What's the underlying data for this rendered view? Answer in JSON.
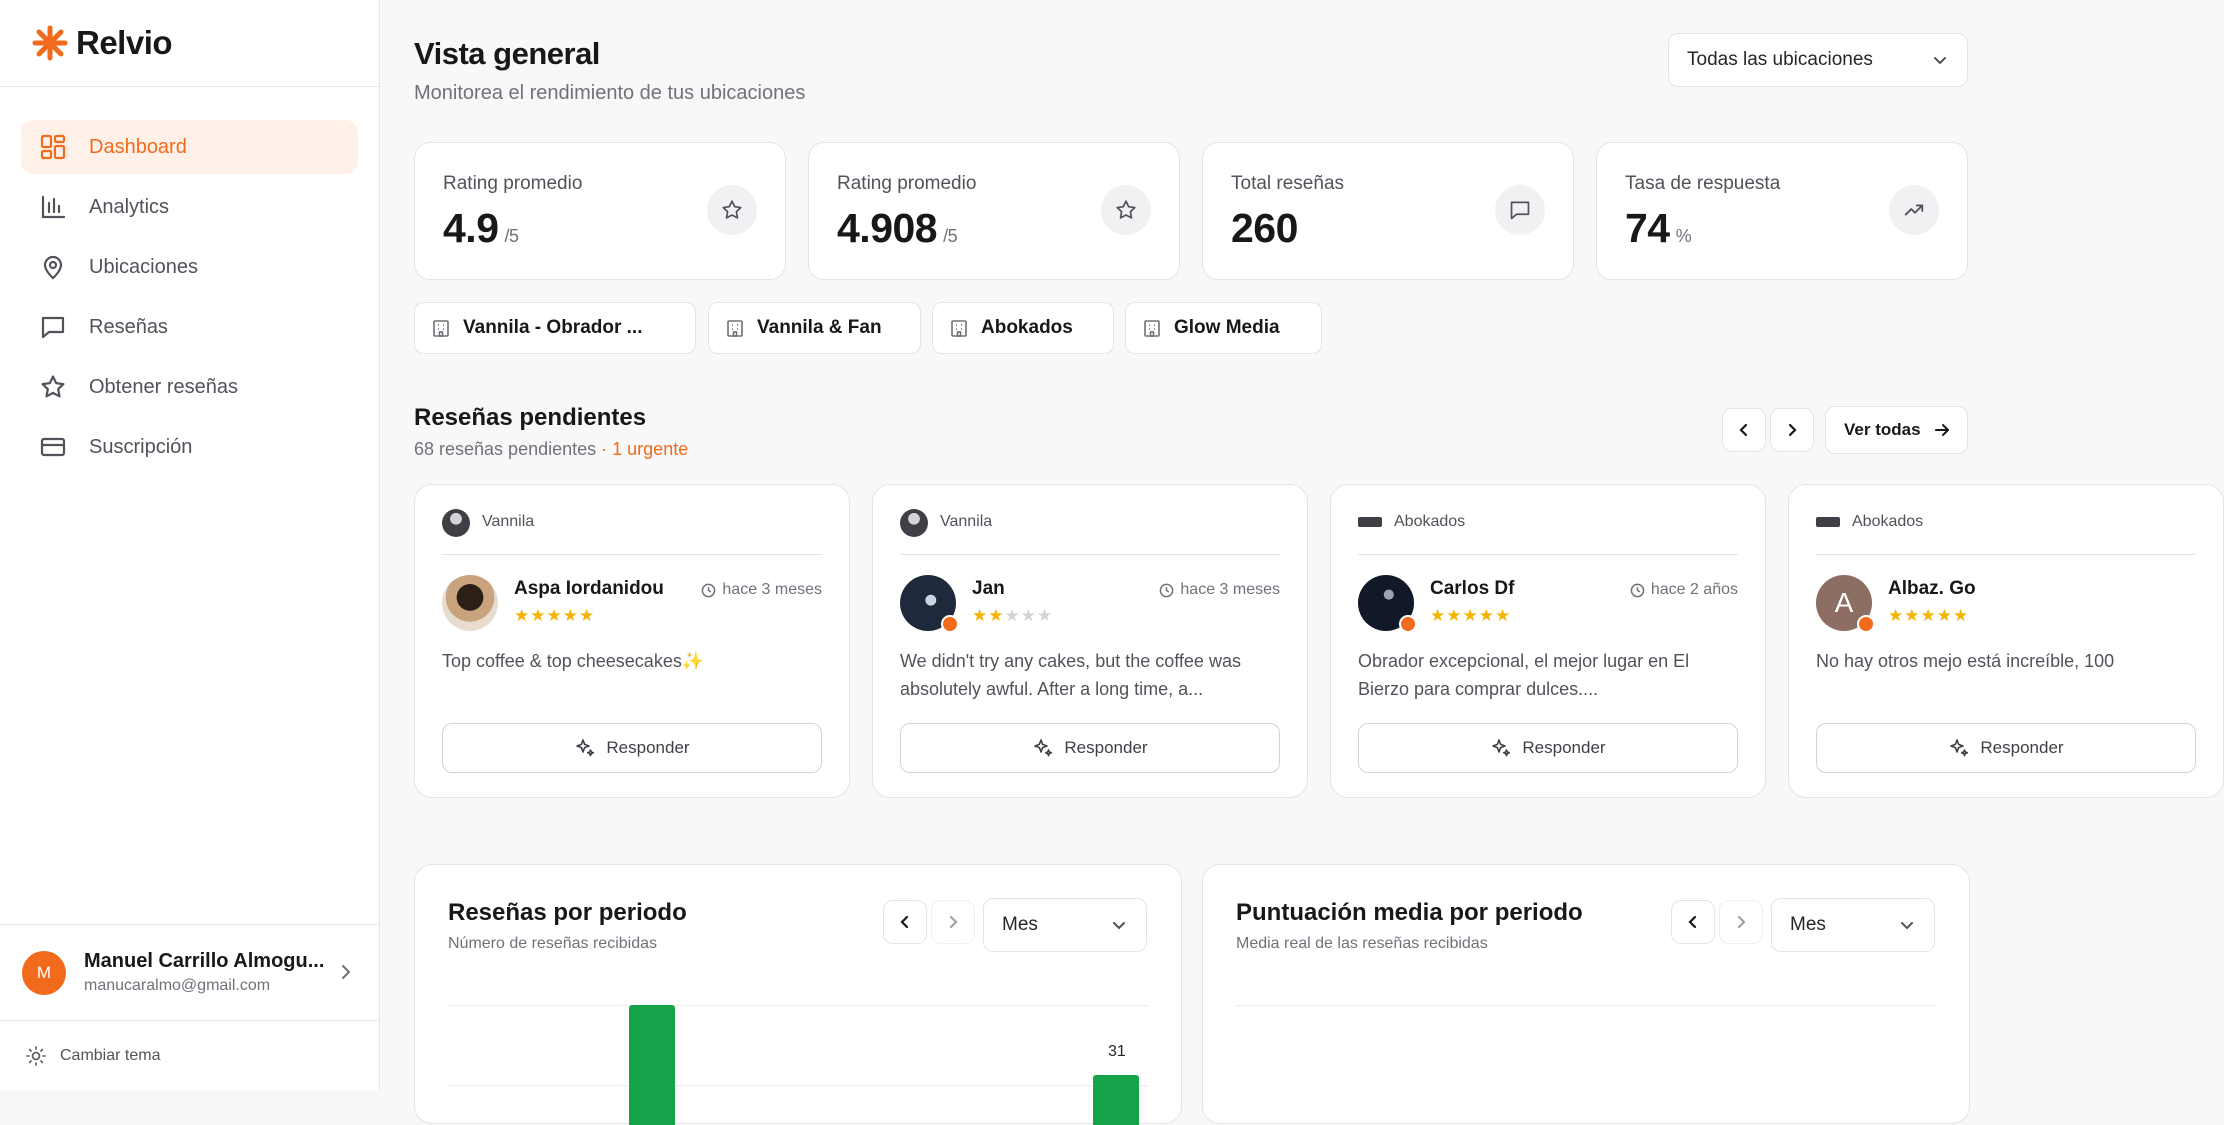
{
  "app": {
    "name": "Relvio",
    "accent": "#f26a1b"
  },
  "sidebar": {
    "items": [
      {
        "label": "Dashboard",
        "icon": "dashboard-grid-icon",
        "active": true
      },
      {
        "label": "Analytics",
        "icon": "bar-chart-icon"
      },
      {
        "label": "Ubicaciones",
        "icon": "map-pin-icon"
      },
      {
        "label": "Reseñas",
        "icon": "message-square-icon"
      },
      {
        "label": "Obtener reseñas",
        "icon": "star-icon"
      },
      {
        "label": "Suscripción",
        "icon": "credit-card-icon"
      }
    ],
    "user": {
      "initial": "M",
      "name": "Manuel Carrillo Almogu...",
      "email": "manucaralmo@gmail.com"
    },
    "theme_label": "Cambiar tema"
  },
  "header": {
    "title": "Vista general",
    "subtitle": "Monitorea el rendimiento de tus ubicaciones",
    "location_select": "Todas las ubicaciones"
  },
  "stats": [
    {
      "label": "Rating promedio",
      "value": "4.9",
      "unit": "/5",
      "icon": "star-icon"
    },
    {
      "label": "Rating promedio",
      "value": "4.908",
      "unit": "/5",
      "icon": "star-icon"
    },
    {
      "label": "Total reseñas",
      "value": "260",
      "unit": "",
      "icon": "message-square-icon"
    },
    {
      "label": "Tasa de respuesta",
      "value": "74",
      "unit": "%",
      "icon": "trending-up-icon"
    }
  ],
  "locations": [
    "Vannila - Obrador ...",
    "Vannila & Fan",
    "Abokados",
    "Glow Media"
  ],
  "pending": {
    "title": "Reseñas pendientes",
    "count_text": "68 reseñas pendientes",
    "urgent_text": "· 1 urgente",
    "view_all": "Ver todas",
    "reply_label": "Responder",
    "reviews": [
      {
        "location": "Vannila",
        "author": "Aspa Iordanidou",
        "rating": 5,
        "time": "hace 3 meses",
        "text": "Top coffee & top cheesecakes✨"
      },
      {
        "location": "Vannila",
        "author": "Jan",
        "rating": 2,
        "time": "hace 3 meses",
        "text": "We didn't try any cakes, but the coffee was absolutely awful. After a long time, a..."
      },
      {
        "location": "Abokados",
        "author": "Carlos Df",
        "rating": 5,
        "time": "hace 2 años",
        "text": "Obrador excepcional, el mejor lugar en El Bierzo para comprar dulces...."
      },
      {
        "location": "Abokados",
        "author": "Albaz. Go",
        "rating": 5,
        "time": "",
        "text": "No hay otros mejo está increíble, 100"
      }
    ]
  },
  "charts": [
    {
      "title": "Reseñas por periodo",
      "subtitle": "Número de reseñas recibidas",
      "period": "Mes"
    },
    {
      "title": "Puntuación media por periodo",
      "subtitle": "Media real de las reseñas recibidas",
      "period": "Mes"
    }
  ],
  "chart_data": {
    "type": "bar",
    "title": "Reseñas por periodo",
    "data_labels": [
      "31"
    ],
    "bar_color": "#16a34a",
    "visible_bars": [
      {
        "label": "",
        "value": null
      },
      {
        "label": "31",
        "value": 31
      }
    ]
  }
}
